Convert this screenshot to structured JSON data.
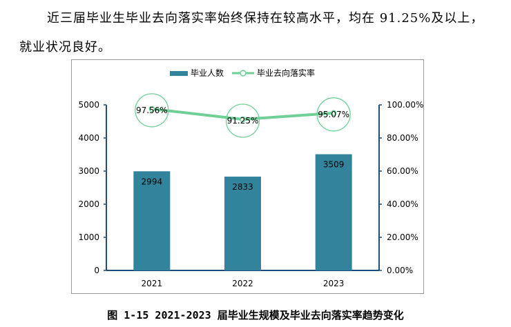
{
  "paragraph": {
    "text": "近三届毕业生毕业去向落实率始终保持在较高水平，均在 91.25%及以上，就业状况良好。"
  },
  "caption": {
    "text": "图 1-15 2021-2023 届毕业生规模及毕业去向落实率趋势变化"
  },
  "chart_data": {
    "type": "bar",
    "categories": [
      "2021",
      "2022",
      "2023"
    ],
    "series": [
      {
        "name": "毕业人数",
        "type": "bar",
        "axis": "left",
        "values": [
          2994,
          2833,
          3509
        ],
        "labels": [
          "2994",
          "2833",
          "3509"
        ],
        "color": "#31849b"
      },
      {
        "name": "毕业去向落实率",
        "type": "line",
        "axis": "right",
        "values": [
          97.56,
          91.25,
          95.07
        ],
        "labels": [
          "97.56%",
          "91.25%",
          "95.07%"
        ],
        "color": "#6fcf97"
      }
    ],
    "y_left": {
      "range": [
        0,
        5000
      ],
      "ticks": [
        "0",
        "1000",
        "2000",
        "3000",
        "4000",
        "5000"
      ]
    },
    "y_right": {
      "range": [
        0,
        100
      ],
      "ticks": [
        "0.00%",
        "20.00%",
        "40.00%",
        "60.00%",
        "80.00%",
        "100.00%"
      ]
    },
    "grid": false,
    "legend_position": "top"
  }
}
